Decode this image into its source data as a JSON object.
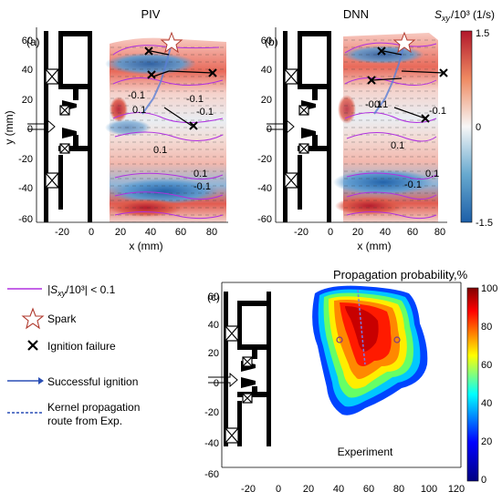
{
  "panels": {
    "a": {
      "tag": "(a)",
      "title": "PIV",
      "xlabel": "x (mm)",
      "ylabel": "y (mm)",
      "xticks": [
        "-20",
        "0",
        "20",
        "40",
        "60",
        "80"
      ],
      "yticks": [
        "60",
        "40",
        "20",
        "0",
        "-20",
        "-40",
        "-60"
      ],
      "contour_labels": [
        "-0.1",
        "-0.1",
        "0.1",
        "-0.1",
        "0.1",
        "0.1",
        "-0.1"
      ]
    },
    "b": {
      "tag": "(b)",
      "title": "DNN",
      "xlabel": "x (mm)",
      "xticks": [
        "-20",
        "0",
        "20",
        "40",
        "60",
        "80"
      ],
      "yticks": [
        "60",
        "40",
        "20",
        "0",
        "-20",
        "-40",
        "-60"
      ],
      "contour_labels": [
        "-0.1",
        "0.1",
        "-0.1",
        "0.1",
        "0.1",
        "-0.1"
      ]
    },
    "c": {
      "tag": "(c)",
      "label": "Experiment",
      "xticks": [
        "-20",
        "0",
        "20",
        "40",
        "60",
        "80",
        "100",
        "120"
      ],
      "yticks": [
        "60",
        "40",
        "20",
        "0",
        "-20",
        "-40",
        "-60"
      ]
    }
  },
  "colorbar_top": {
    "title": "S",
    "title_sub": "xy",
    "title_rest": "/10³ (1/s)",
    "ticks": [
      "1.5",
      "0",
      "-1.5"
    ],
    "colors": {
      "high": "#c81e2a",
      "mid": "#f4f4f4",
      "low": "#1f6fb4"
    }
  },
  "colorbar_bottom": {
    "title": "Propagation probability,%",
    "ticks": [
      "100",
      "80",
      "60",
      "40",
      "20",
      "0"
    ]
  },
  "legend": {
    "contour": {
      "pre": "|S",
      "sub": "xy",
      "post": "/10³| < 0.1",
      "color": "#b030e0"
    },
    "spark": {
      "label": "Spark",
      "color": "#b03a2e"
    },
    "failure": {
      "label": "Ignition failure"
    },
    "success": {
      "label": "Successful ignition",
      "color": "#2a4fb5"
    },
    "kernel": {
      "line1": "Kernel propagation",
      "line2": "route from Exp.",
      "color": "#2a4fb5"
    }
  }
}
